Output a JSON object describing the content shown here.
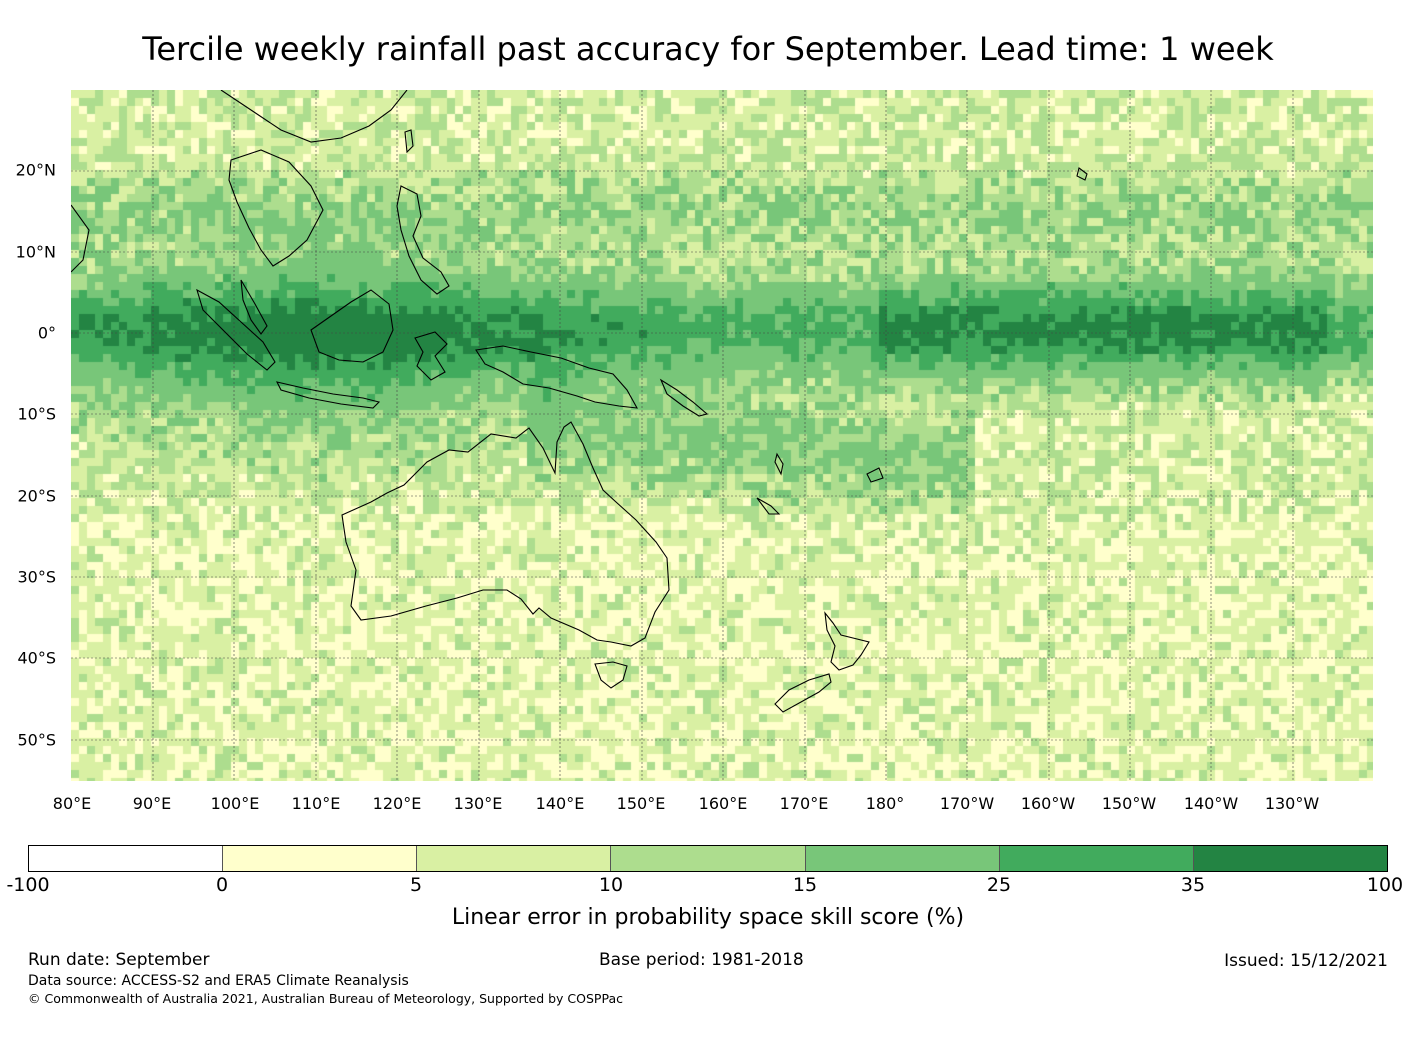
{
  "title": "Tercile weekly rainfall past accuracy for September. Lead time: 1 week",
  "map": {
    "type": "heatmap",
    "region": "Western Pacific / Australia",
    "lat_labels": [
      "20°N",
      "10°N",
      "0°",
      "10°S",
      "20°S",
      "30°S",
      "40°S",
      "50°S"
    ],
    "lon_labels": [
      "80°E",
      "90°E",
      "100°E",
      "110°E",
      "120°E",
      "130°E",
      "140°E",
      "150°E",
      "160°E",
      "170°E",
      "180°",
      "170°W",
      "160°W",
      "150°W",
      "140°W",
      "130°W"
    ]
  },
  "colorbar": {
    "ticks": [
      "-100",
      "0",
      "5",
      "10",
      "15",
      "25",
      "35",
      "100"
    ],
    "colors": [
      "#ffffff",
      "#ffffcc",
      "#d9f0a3",
      "#addd8e",
      "#78c679",
      "#41ab5d",
      "#238443"
    ],
    "label": "Linear error in probability space skill score (%)"
  },
  "footer": {
    "run_date": "Run date: September",
    "base_period": "Base period: 1981-2018",
    "issued": "Issued: 15/12/2021",
    "data_source": "Data source: ACCESS-S2 and ERA5 Climate Reanalysis",
    "copyright": "© Commonwealth of Australia 2021, Australian Bureau of Meteorology, Supported by COSPPac"
  }
}
